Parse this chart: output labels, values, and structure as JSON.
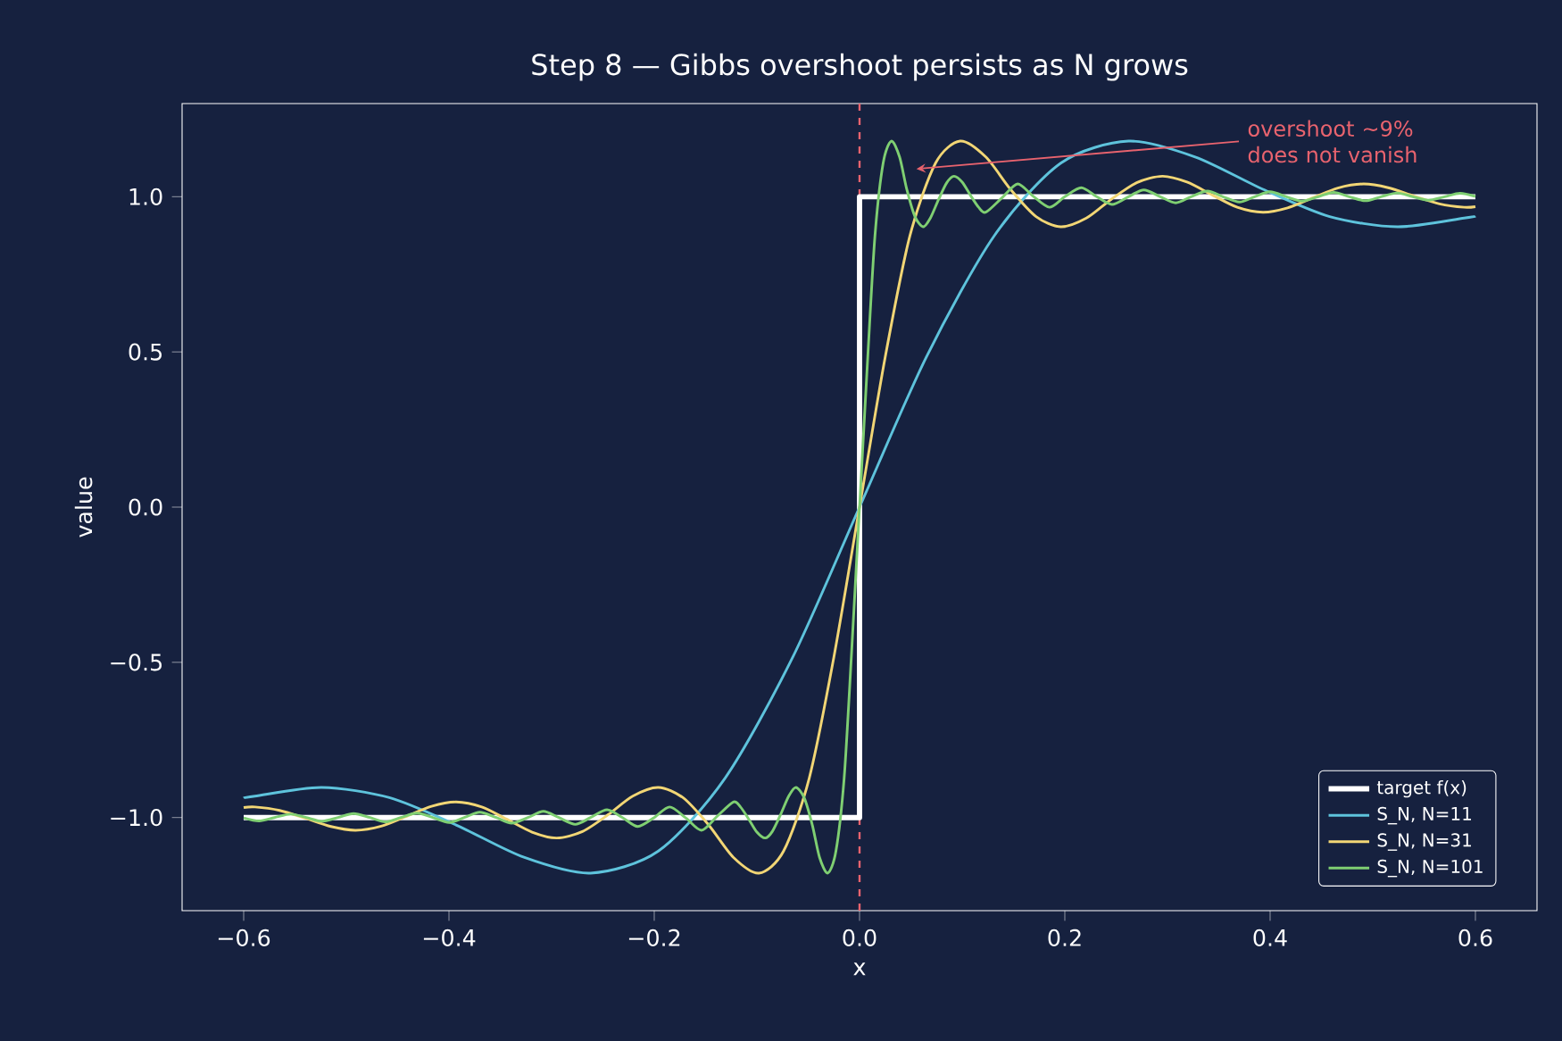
{
  "chart_data": {
    "type": "line",
    "title": "Step 8 — Gibbs overshoot persists as N grows",
    "xlabel": "x",
    "ylabel": "value",
    "xlim": [
      -0.66,
      0.66
    ],
    "ylim": [
      -1.3,
      1.3
    ],
    "xticks": [
      {
        "value": -0.6,
        "label": "−0.6"
      },
      {
        "value": -0.4,
        "label": "−0.4"
      },
      {
        "value": -0.2,
        "label": "−0.2"
      },
      {
        "value": 0,
        "label": "0.0"
      },
      {
        "value": 0.2,
        "label": "0.2"
      },
      {
        "value": 0.4,
        "label": "0.4"
      },
      {
        "value": 0.6,
        "label": "0.6"
      }
    ],
    "yticks": [
      {
        "value": -1,
        "label": "−1.0"
      },
      {
        "value": -0.5,
        "label": "−0.5"
      },
      {
        "value": 0,
        "label": "0.0"
      },
      {
        "value": 0.5,
        "label": "0.5"
      },
      {
        "value": 1,
        "label": "1.0"
      }
    ],
    "legend": "bottom right",
    "ref_lines": [
      {
        "axis": "x",
        "value": 0,
        "color": "#e8636e",
        "line_style": "dashed"
      }
    ],
    "annotations": [
      "overshoot ~9% does not vanish"
    ],
    "series": [
      {
        "name": "target f(x)",
        "type": "step",
        "color": "#ffffff",
        "x": [
          -0.6,
          0,
          0.6
        ],
        "values": [
          -1,
          1,
          1
        ]
      },
      {
        "name": "S_N, N=11",
        "color": "#5ec3dc",
        "x": [
          -0.6,
          -0.589,
          -0.524,
          -0.458,
          -0.393,
          -0.327,
          -0.262,
          -0.196,
          -0.131,
          -0.065,
          0,
          0.065,
          0.131,
          0.196,
          0.262,
          0.327,
          0.393,
          0.458,
          0.524,
          0.589,
          0.6
        ],
        "values": [
          -0.937,
          -0.931,
          -0.903,
          -0.936,
          -1.024,
          -1.128,
          -1.179,
          -1.108,
          -0.873,
          -0.483,
          0,
          0.483,
          0.873,
          1.108,
          1.179,
          1.128,
          1.024,
          0.936,
          0.903,
          0.931,
          0.937
        ]
      },
      {
        "name": "S_N, N=31",
        "color": "#f2d675",
        "x": [
          -0.6,
          -0.589,
          -0.565,
          -0.54,
          -0.515,
          -0.491,
          -0.466,
          -0.442,
          -0.417,
          -0.393,
          -0.368,
          -0.344,
          -0.319,
          -0.295,
          -0.27,
          -0.245,
          -0.221,
          -0.196,
          -0.172,
          -0.147,
          -0.123,
          -0.098,
          -0.074,
          -0.049,
          -0.025,
          0,
          0.025,
          0.049,
          0.074,
          0.098,
          0.123,
          0.147,
          0.172,
          0.196,
          0.221,
          0.245,
          0.27,
          0.295,
          0.319,
          0.344,
          0.368,
          0.393,
          0.417,
          0.442,
          0.466,
          0.491,
          0.515,
          0.54,
          0.565,
          0.589,
          0.6
        ],
        "values": [
          -0.968,
          -0.966,
          -0.977,
          -1.002,
          -1.029,
          -1.041,
          -1.028,
          -0.997,
          -0.964,
          -0.95,
          -0.966,
          -1.005,
          -1.047,
          -1.066,
          -1.045,
          -0.991,
          -0.931,
          -0.903,
          -0.936,
          -1.024,
          -1.128,
          -1.179,
          -1.108,
          -0.873,
          -0.483,
          0,
          0.483,
          0.873,
          1.108,
          1.179,
          1.128,
          1.024,
          0.936,
          0.903,
          0.931,
          0.991,
          1.045,
          1.066,
          1.047,
          1.005,
          0.966,
          0.95,
          0.964,
          0.997,
          1.028,
          1.041,
          1.029,
          1.002,
          0.977,
          0.966,
          0.968
        ]
      },
      {
        "name": "S_N, N=101",
        "color": "#7fcf72",
        "x": [
          -0.6,
          -0.585,
          -0.57,
          -0.554,
          -0.539,
          -0.524,
          -0.508,
          -0.493,
          -0.477,
          -0.462,
          -0.447,
          -0.431,
          -0.416,
          -0.4,
          -0.385,
          -0.37,
          -0.354,
          -0.339,
          -0.323,
          -0.308,
          -0.293,
          -0.277,
          -0.262,
          -0.246,
          -0.231,
          -0.216,
          -0.2,
          -0.185,
          -0.169,
          -0.154,
          -0.139,
          -0.123,
          -0.116,
          -0.108,
          -0.1,
          -0.092,
          -0.085,
          -0.077,
          -0.069,
          -0.062,
          -0.054,
          -0.046,
          -0.039,
          -0.031,
          -0.023,
          -0.015,
          -0.008,
          0,
          0.008,
          0.015,
          0.023,
          0.031,
          0.039,
          0.046,
          0.054,
          0.062,
          0.069,
          0.077,
          0.085,
          0.092,
          0.1,
          0.108,
          0.116,
          0.123,
          0.139,
          0.154,
          0.169,
          0.185,
          0.2,
          0.216,
          0.231,
          0.246,
          0.262,
          0.277,
          0.293,
          0.308,
          0.323,
          0.339,
          0.354,
          0.37,
          0.385,
          0.4,
          0.416,
          0.431,
          0.447,
          0.462,
          0.477,
          0.493,
          0.508,
          0.524,
          0.539,
          0.554,
          0.57,
          0.585,
          0.6
        ],
        "values": [
          -1.001,
          -1.011,
          -1.0,
          -0.989,
          -1.0,
          -1.012,
          -1.0,
          -0.987,
          -1.0,
          -1.014,
          -1.0,
          -0.986,
          -1.0,
          -1.016,
          -1.0,
          -0.983,
          -1.0,
          -1.018,
          -1.0,
          -0.98,
          -1.0,
          -1.022,
          -1.0,
          -0.975,
          -1.0,
          -1.029,
          -1.0,
          -0.966,
          -1.002,
          -1.041,
          -0.997,
          -0.95,
          -0.966,
          -1.005,
          -1.047,
          -1.066,
          -1.045,
          -0.991,
          -0.931,
          -0.903,
          -0.936,
          -1.024,
          -1.128,
          -1.179,
          -1.108,
          -0.873,
          -0.483,
          0,
          0.483,
          0.873,
          1.108,
          1.179,
          1.128,
          1.024,
          0.936,
          0.903,
          0.931,
          0.991,
          1.045,
          1.066,
          1.047,
          1.005,
          0.966,
          0.95,
          0.997,
          1.041,
          1.002,
          0.966,
          1.0,
          1.029,
          1.0,
          0.975,
          1.0,
          1.022,
          1.0,
          0.98,
          1.0,
          1.018,
          1.0,
          0.983,
          1.0,
          1.016,
          1.0,
          0.986,
          1.0,
          1.014,
          1.0,
          0.987,
          1.0,
          1.012,
          1.0,
          0.989,
          1.0,
          1.011,
          1.001
        ]
      }
    ]
  }
}
